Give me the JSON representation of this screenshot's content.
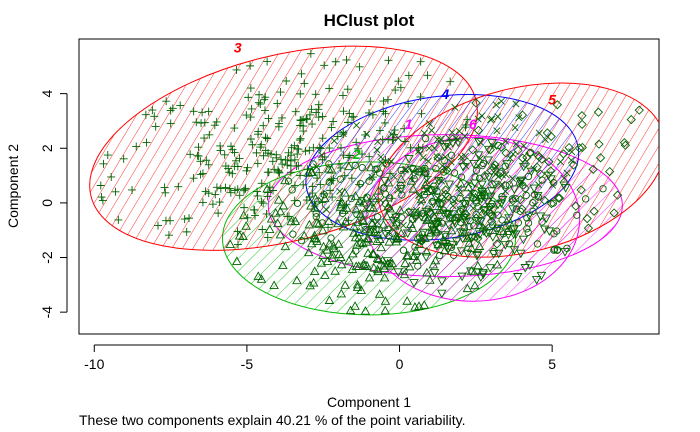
{
  "chart_data": {
    "type": "scatter",
    "title": "HClust plot",
    "xlabel": "Component 1",
    "ylabel": "Component 2",
    "subtitle": "These two components explain 40.21 % of the point variability.",
    "xlim": [
      -10.5,
      8.5
    ],
    "ylim": [
      -4.8,
      6.0
    ],
    "x_ticks": [
      -10,
      -5,
      0,
      5
    ],
    "y_ticks": [
      -4,
      -2,
      0,
      2,
      4
    ],
    "grid": false,
    "point_color": "#006400",
    "clusters": [
      {
        "id": "1",
        "label": "1",
        "color": "#FF00FF",
        "ellipse": {
          "cx": 1.5,
          "cy": -0.1,
          "rx": 5.8,
          "ry": 2.6,
          "angle": 0
        },
        "label_pos": {
          "x": 0.3,
          "y": 2.7
        },
        "symbol": "circle",
        "n": 170
      },
      {
        "id": "2",
        "label": "2",
        "color": "#00BB00",
        "ellipse": {
          "cx": -1.0,
          "cy": -1.3,
          "rx": 4.8,
          "ry": 2.8,
          "angle": 0
        },
        "label_pos": {
          "x": -1.4,
          "y": 1.6
        },
        "symbol": "triangle",
        "n": 220
      },
      {
        "id": "3",
        "label": "3",
        "color": "#FF0000",
        "ellipse": {
          "cx": -3.8,
          "cy": 2.0,
          "rx": 6.5,
          "ry": 3.4,
          "angle": -14
        },
        "label_pos": {
          "x": -5.3,
          "y": 5.5
        },
        "symbol": "plus",
        "n": 300
      },
      {
        "id": "4",
        "label": "4",
        "color": "#0000FF",
        "ellipse": {
          "cx": 1.4,
          "cy": 1.3,
          "rx": 4.5,
          "ry": 2.6,
          "angle": -8
        },
        "label_pos": {
          "x": 1.5,
          "y": 3.8
        },
        "symbol": "x",
        "n": 120
      },
      {
        "id": "5",
        "label": "5",
        "color": "#FF0000",
        "ellipse": {
          "cx": 4.0,
          "cy": 1.2,
          "rx": 4.8,
          "ry": 3.0,
          "angle": -14
        },
        "label_pos": {
          "x": 5.0,
          "y": 3.6
        },
        "symbol": "diamond",
        "n": 80
      },
      {
        "id": "6",
        "label": "6",
        "color": "#FF00FF",
        "ellipse": {
          "cx": 2.4,
          "cy": -0.6,
          "rx": 3.5,
          "ry": 3.0,
          "angle": 0
        },
        "label_pos": {
          "x": 2.4,
          "y": 2.7
        },
        "symbol": "down-triangle",
        "n": 150
      }
    ]
  }
}
